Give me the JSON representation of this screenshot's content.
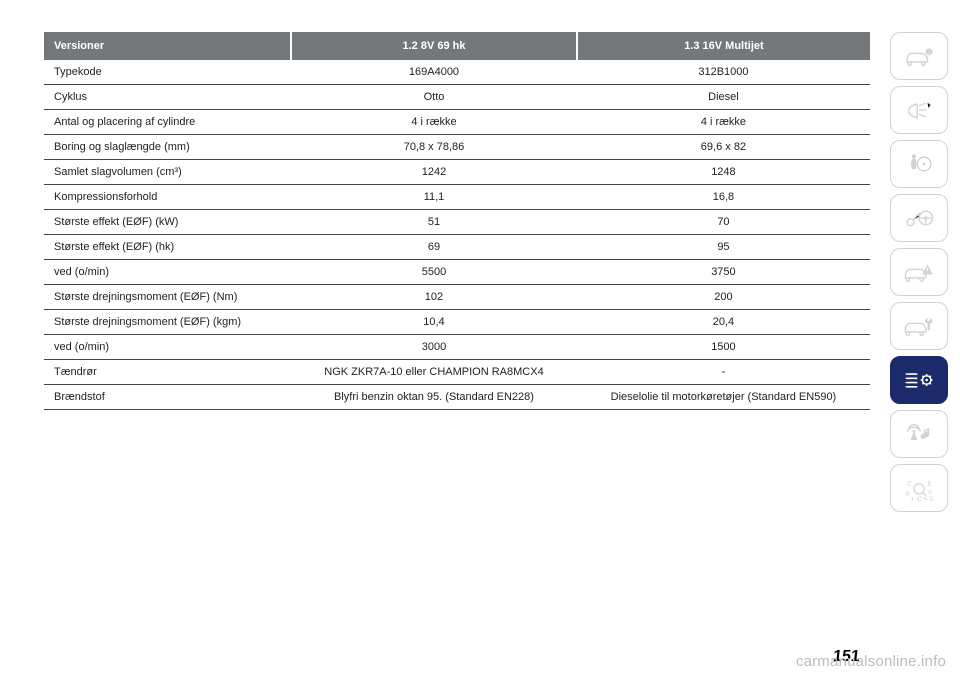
{
  "table": {
    "header_bg": "#75787b",
    "header_color": "#ffffff",
    "columns": [
      "Versioner",
      "1.2 8V 69 hk",
      "1.3 16V Multijet"
    ],
    "rows": [
      [
        "Typekode",
        "169A4000",
        "312B1000"
      ],
      [
        "Cyklus",
        "Otto",
        "Diesel"
      ],
      [
        "Antal og placering af cylindre",
        "4 i række",
        "4 i række"
      ],
      [
        "Boring og slaglængde (mm)",
        "70,8 x 78,86",
        "69,6 x 82"
      ],
      [
        "Samlet slagvolumen (cm³)",
        "1242",
        "1248"
      ],
      [
        "Kompressionsforhold",
        "11,1",
        "16,8"
      ],
      [
        "Største effekt (EØF) (kW)",
        "51",
        "70"
      ],
      [
        "Største effekt (EØF) (hk)",
        "69",
        "95"
      ],
      [
        "ved (o/min)",
        "5500",
        "3750"
      ],
      [
        "Største drejningsmoment (EØF) (Nm)",
        "102",
        "200"
      ],
      [
        "Største drejningsmoment (EØF) (kgm)",
        "10,4",
        "20,4"
      ],
      [
        "ved (o/min)",
        "3000",
        "1500"
      ],
      [
        "Tændrør",
        "NGK ZKR7A-10 eller CHAMPION RA8MCX4",
        "-"
      ],
      [
        "Brændstof",
        "Blyfri benzin oktan 95. (Standard EN228)",
        "Dieselolie til motorkøretøjer (Standard EN590)"
      ]
    ]
  },
  "sidebar": {
    "icons": [
      {
        "name": "car-info-icon",
        "active": false
      },
      {
        "name": "lights-icon",
        "active": false
      },
      {
        "name": "airbag-icon",
        "active": false
      },
      {
        "name": "key-steering-icon",
        "active": false
      },
      {
        "name": "car-warning-icon",
        "active": false
      },
      {
        "name": "car-service-icon",
        "active": false
      },
      {
        "name": "specs-gear-icon",
        "active": true
      },
      {
        "name": "media-nav-icon",
        "active": false
      },
      {
        "name": "alphabet-icon",
        "active": false
      }
    ],
    "active_bg": "#1b2a6b",
    "inactive_color": "#cfd3d6"
  },
  "page_number": "151",
  "watermark": "carmanualsonline.info"
}
